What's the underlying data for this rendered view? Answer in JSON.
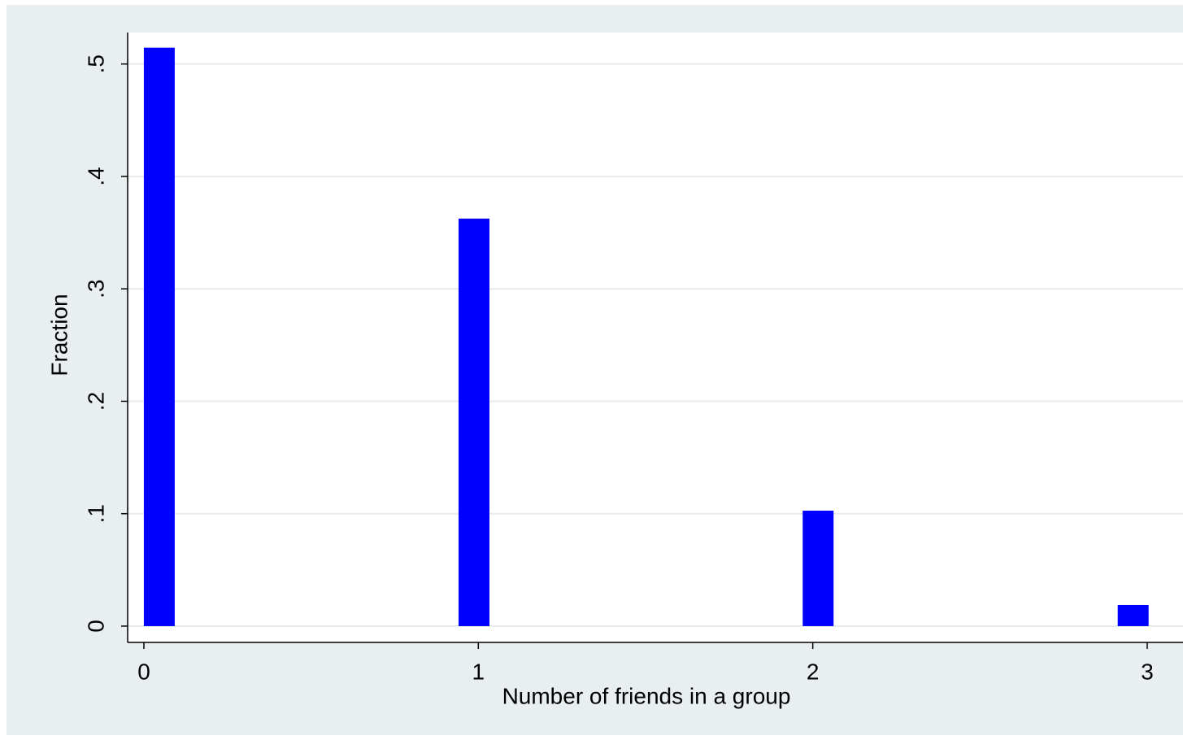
{
  "chart_data": {
    "type": "bar",
    "x_label": "Number of friends in a group",
    "y_label": "Fraction",
    "x": [
      0.046,
      0.987,
      2.016,
      2.958
    ],
    "values": [
      0.5145,
      0.3625,
      0.1027,
      0.0188
    ],
    "color": "#0000ff",
    "xlim": [
      -0.0486,
      3.107
    ],
    "ylim": [
      -0.0145,
      0.528
    ],
    "xticks": [
      0,
      1,
      2,
      3
    ],
    "yticks": [
      0,
      {
        "value": 0.1,
        "label": ".1"
      },
      {
        "value": 0.2,
        "label": ".2"
      },
      {
        "value": 0.3,
        "label": ".3"
      },
      {
        "value": 0.4,
        "label": ".4"
      },
      {
        "value": 0.5,
        "label": ".5"
      }
    ],
    "grid": true
  }
}
